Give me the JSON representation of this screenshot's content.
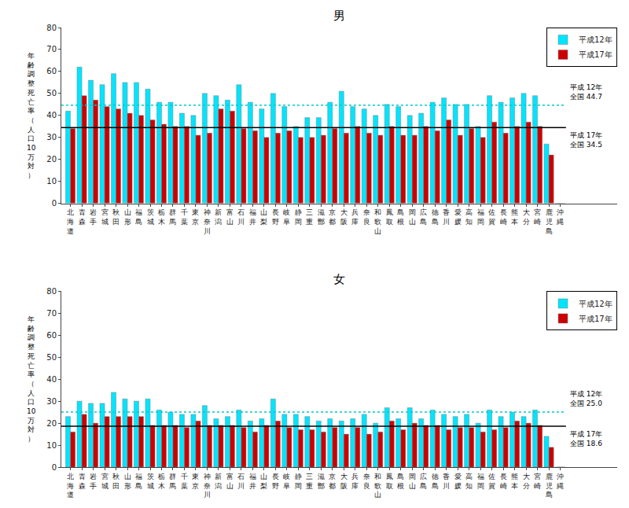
{
  "chart_data": [
    {
      "type": "bar",
      "title": "男",
      "categories": [
        "北\n海\n道",
        "青\n森",
        "岩\n手",
        "宮\n城",
        "秋\n田",
        "山\n形",
        "福\n島",
        "茨\n城",
        "栃\n木",
        "群\n馬",
        "千\n葉",
        "東\n京",
        "神\n奈\n川",
        "新\n潟",
        "富\n山",
        "石\n川",
        "福\n井",
        "山\n梨",
        "長\n野",
        "岐\n阜",
        "静\n岡",
        "三\n重",
        "滋\n鄫",
        "京\n都",
        "大\n阪",
        "兵\n庫",
        "奈\n良",
        "和\n歌\n山",
        "鳳\n取",
        "島\n根",
        "岡\n山",
        "広\n島",
        "徳\n島",
        "香\n川",
        "愛\n媛",
        "高\n知",
        "福\n岡",
        "佐\n賀",
        "長\n崎",
        "熊\n本",
        "大\n分",
        "宮\n崎",
        "鹿\n児\n島",
        "沖\n縄"
      ],
      "series": [
        {
          "name": "平成12年",
          "color": "#00E5FF",
          "values": [
            42,
            62,
            56,
            54,
            59,
            55,
            55,
            52,
            46,
            46,
            41,
            40,
            50,
            49,
            47,
            54,
            46,
            43,
            50,
            44,
            35,
            39,
            39,
            46,
            51,
            44,
            43,
            40,
            45,
            44,
            40,
            41,
            46,
            48,
            45,
            45,
            35,
            49,
            46,
            48,
            50,
            49,
            27,
            0
          ]
        },
        {
          "name": "平成17年",
          "color": "#CC0000",
          "values": [
            34,
            49,
            47,
            44,
            43,
            41,
            40,
            38,
            36,
            35,
            35,
            31,
            32,
            43,
            42,
            34,
            33,
            30,
            32,
            33,
            30,
            30,
            31,
            34,
            32,
            35,
            32,
            31,
            35,
            31,
            31,
            35,
            33,
            38,
            31,
            34,
            30,
            37,
            32,
            35,
            37,
            35,
            22,
            0
          ]
        }
      ],
      "reference_lines": [
        {
          "value": 44.7,
          "label": "平成 12年\n全国 44.7",
          "color": "#00CCCC",
          "line_style": "dotted"
        },
        {
          "value": 34.5,
          "label": "平成 17年\n全国 34.5",
          "color": "black",
          "line_style": "solid"
        }
      ],
      "y_label": "年\n齢\n調\n整\n死\n亡\n率\n（\n人\n口\n10\n万\n対\n）",
      "ylim": [
        0,
        80
      ],
      "yticks": [
        0,
        10,
        20,
        30,
        40,
        50,
        60,
        70,
        80
      ],
      "grid": false,
      "legend": "upper right"
    },
    {
      "type": "bar",
      "title": "女",
      "categories": [
        "北\n海\n道",
        "青\n森",
        "岩\n手",
        "宮\n城",
        "秋\n田",
        "山\n形",
        "福\n島",
        "茨\n城",
        "栃\n木",
        "群\n馬",
        "千\n葉",
        "東\n京",
        "神\n奈\n川",
        "新\n潟",
        "富\n山",
        "石\n川",
        "福\n井",
        "山\n梨",
        "長\n野",
        "岐\n阜",
        "静\n岡",
        "三\n重",
        "滋\n鄫",
        "京\n都",
        "大\n阪",
        "兵\n庫",
        "奈\n良",
        "和\n歌\n山",
        "鳳\n取",
        "島\n根",
        "岡\n山",
        "広\n島",
        "徳\n島",
        "香\n川",
        "愛\n媛",
        "高\n知",
        "福\n岡",
        "佐\n賀",
        "長\n崎",
        "熊\n本",
        "大\n分",
        "宮\n崎",
        "鹿\n児\n島",
        "沖\n縄"
      ],
      "series": [
        {
          "name": "平成12年",
          "color": "#00E5FF",
          "values": [
            23,
            30,
            29,
            29,
            34,
            31,
            30,
            31,
            26,
            25,
            24,
            24,
            28,
            22,
            23,
            26,
            21,
            22,
            31,
            24,
            24,
            23,
            21,
            22,
            21,
            22,
            24,
            20,
            27,
            22,
            27,
            22,
            26,
            24,
            23,
            24,
            20,
            26,
            23,
            25,
            23,
            26,
            14,
            0
          ]
        },
        {
          "name": "平成17年",
          "color": "#CC0000",
          "values": [
            16,
            24,
            20,
            23,
            23,
            23,
            23,
            19,
            19,
            19,
            18,
            21,
            19,
            19,
            19,
            18,
            16,
            19,
            21,
            18,
            17,
            17,
            16,
            18,
            15,
            18,
            15,
            16,
            21,
            17,
            20,
            19,
            19,
            17,
            18,
            18,
            16,
            17,
            18,
            21,
            20,
            19,
            9,
            0
          ]
        }
      ],
      "reference_lines": [
        {
          "value": 25.0,
          "label": "平成 12年\n全国 25.0",
          "color": "#00CCCC",
          "line_style": "dotted"
        },
        {
          "value": 18.6,
          "label": "平成 17年\n全国 18.6",
          "color": "black",
          "line_style": "solid"
        }
      ],
      "y_label": "年\n齢\n調\n整\n死\n亡\n率\n（\n人\n口\n10\n万\n対\n）",
      "ylim": [
        0,
        80
      ],
      "yticks": [
        0,
        10,
        20,
        30,
        40,
        50,
        60,
        70,
        80
      ],
      "grid": false,
      "legend": "upper right"
    }
  ]
}
